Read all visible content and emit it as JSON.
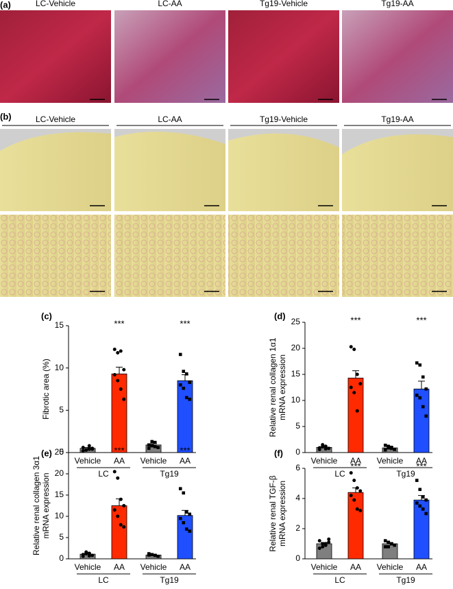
{
  "panels": {
    "a": {
      "label": "(a)",
      "columns": [
        "LC-Vehicle",
        "LC-AA",
        "Tg19-Vehicle",
        "Tg19-AA"
      ]
    },
    "b": {
      "label": "(b)",
      "columns": [
        "LC-Vehicle",
        "LC-AA",
        "Tg19-Vehicle",
        "Tg19-AA"
      ]
    }
  },
  "chart_data": [
    {
      "type": "bar",
      "panel": "(c)",
      "ylabel": [
        "Fibrotic area (%)"
      ],
      "categories": [
        "Vehicle",
        "AA",
        "Vehicle",
        "AA"
      ],
      "groups": [
        "LC",
        "Tg19"
      ],
      "values": [
        0.5,
        9.3,
        0.9,
        8.5
      ],
      "errors": [
        0.1,
        0.8,
        0.15,
        0.7
      ],
      "colors": [
        "#7f7f7f",
        "#ff2a00",
        "#7f7f7f",
        "#1f4fff"
      ],
      "points": [
        [
          0.2,
          0.3,
          0.4,
          0.5,
          0.6,
          0.3,
          0.8,
          0.4
        ],
        [
          12.2,
          11.8,
          12.0,
          9.8,
          9.2,
          8.5,
          7.5,
          6.3
        ],
        [
          0.5,
          0.8,
          1.2,
          0.6,
          0.9,
          1.3,
          0.7
        ],
        [
          11.6,
          9.6,
          9.3,
          8.3,
          8.0,
          7.6,
          6.5,
          6.3
        ]
      ],
      "significance": [
        "***",
        "***"
      ],
      "ylim": [
        0,
        15
      ],
      "yticks": [
        0,
        5,
        10,
        15
      ]
    },
    {
      "type": "bar",
      "panel": "(d)",
      "ylabel": [
        "Relative renal collagen 1α1",
        "mRNA expression"
      ],
      "categories": [
        "Vehicle",
        "AA",
        "Vehicle",
        "AA"
      ],
      "groups": [
        "LC",
        "Tg19"
      ],
      "values": [
        1.0,
        14.3,
        0.9,
        12.2
      ],
      "errors": [
        0.2,
        1.4,
        0.2,
        1.5
      ],
      "colors": [
        "#7f7f7f",
        "#ff2a00",
        "#7f7f7f",
        "#1f4fff"
      ],
      "points": [
        [
          0.6,
          1.5,
          1.2,
          0.8,
          0.9,
          1.1,
          0.7
        ],
        [
          20.3,
          19.8,
          15,
          13.2,
          12.5,
          11.5,
          8.0
        ],
        [
          1.4,
          1.2,
          0.8,
          0.6,
          0.5,
          0.9,
          1.0
        ],
        [
          17.2,
          16.8,
          14.5,
          12.2,
          11.0,
          10.5,
          8.8,
          7.0
        ]
      ],
      "significance": [
        "***",
        "***"
      ],
      "ylim": [
        0,
        25
      ],
      "yticks": [
        0,
        5,
        10,
        15,
        20,
        25
      ]
    },
    {
      "type": "bar",
      "panel": "(e)",
      "ylabel": [
        "Relative renal collagen 3α1",
        "mRNA expression"
      ],
      "categories": [
        "Vehicle",
        "AA",
        "Vehicle",
        "AA"
      ],
      "groups": [
        "LC",
        "Tg19"
      ],
      "values": [
        1.1,
        12.5,
        0.9,
        10.2
      ],
      "errors": [
        0.2,
        1.6,
        0.2,
        1.2
      ],
      "colors": [
        "#7f7f7f",
        "#ff2a00",
        "#7f7f7f",
        "#1f4fff"
      ],
      "points": [
        [
          0.6,
          1.6,
          1.3,
          0.8,
          1.0,
          1.2,
          0.7
        ],
        [
          20.5,
          19.0,
          14,
          12.5,
          11.5,
          10.0,
          8.0,
          7.5
        ],
        [
          1.2,
          1.0,
          0.8,
          0.6,
          0.9
        ],
        [
          16.5,
          15.5,
          11.0,
          10.5,
          9.5,
          8.5,
          7.0,
          6.5
        ]
      ],
      "significance": [
        "***",
        "***"
      ],
      "ylim": [
        0,
        25
      ],
      "yticks": [
        0,
        5,
        10,
        15,
        20,
        25
      ]
    },
    {
      "type": "bar",
      "panel": "(f)",
      "ylabel": [
        "Relative renal TGF-β",
        "mRNA expression"
      ],
      "categories": [
        "Vehicle",
        "AA",
        "Vehicle",
        "AA"
      ],
      "groups": [
        "LC",
        "Tg19"
      ],
      "values": [
        1.0,
        4.4,
        1.0,
        3.9
      ],
      "errors": [
        0.08,
        0.3,
        0.07,
        0.3
      ],
      "colors": [
        "#7f7f7f",
        "#ff2a00",
        "#7f7f7f",
        "#1f4fff"
      ],
      "points": [
        [
          1.2,
          1.0,
          0.9,
          1.1,
          0.7,
          0.8,
          1.0,
          1.3
        ],
        [
          5.7,
          5.2,
          4.7,
          4.5,
          4.2,
          3.9,
          3.3,
          3.2
        ],
        [
          1.2,
          1.1,
          1.0,
          0.9,
          0.8,
          0.8,
          1.0
        ],
        [
          5.2,
          4.6,
          4.1,
          3.9,
          3.7,
          3.5,
          3.3,
          3.0
        ]
      ],
      "significance": [
        "***",
        "***"
      ],
      "ylim": [
        0,
        6
      ],
      "yticks": [
        0,
        2,
        4,
        6
      ]
    }
  ]
}
